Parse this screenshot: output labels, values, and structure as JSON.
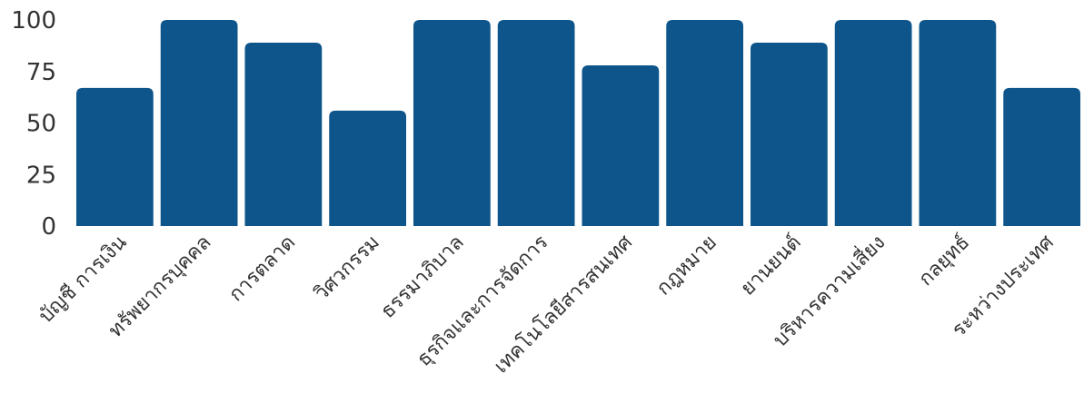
{
  "chart_data": {
    "type": "bar",
    "categories": [
      "บัญชี การเงิน",
      "ทรัพยากรบุคคล",
      "การตลาด",
      "วิศวกรรม",
      "ธรรมาภิบาล",
      "ธุรกิจและการจัดการ",
      "เทคโนโลยีสารสนเทศ",
      "กฎหมาย",
      "ยานยนต์",
      "บริหารความเสี่ยง",
      "กลยุทธ์",
      "ระหว่างประเทศ"
    ],
    "values": [
      67,
      100,
      89,
      56,
      100,
      100,
      78,
      100,
      89,
      100,
      100,
      67
    ],
    "ylim": [
      0,
      100
    ],
    "yticks": [
      0,
      25,
      50,
      75,
      100
    ],
    "title": "",
    "xlabel": "",
    "ylabel": "",
    "bar_color": "#0d558a",
    "grid": false,
    "legend": "none"
  }
}
